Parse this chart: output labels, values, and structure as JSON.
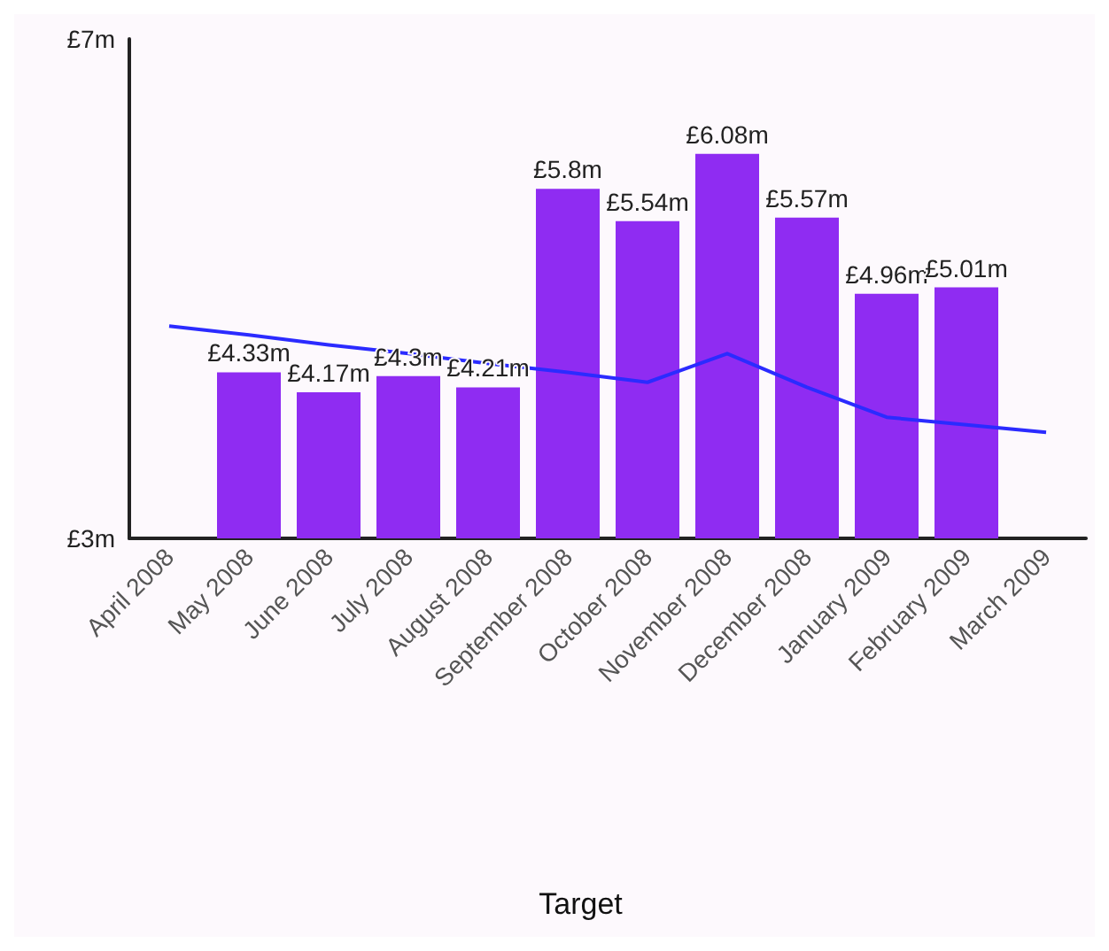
{
  "chart_data": {
    "type": "bar",
    "categories": [
      "April 2008",
      "May 2008",
      "June 2008",
      "July 2008",
      "August 2008",
      "September 2008",
      "October 2008",
      "November 2008",
      "December 2008",
      "January 2009",
      "February 2009",
      "March 2009"
    ],
    "series": [
      {
        "color": "#8f2cf2",
        "values": [
          null,
          4.33,
          4.17,
          4.3,
          4.21,
          5.8,
          5.54,
          6.08,
          5.57,
          4.96,
          5.01,
          null
        ],
        "value_labels": [
          null,
          "£4.33m",
          "£4.17m",
          "£4.3m",
          "£4.21m",
          "£5.8m",
          "£5.54m",
          "£6.08m",
          "£5.57m",
          "£4.96m",
          "£5.01m",
          null
        ]
      },
      {
        "type": "line",
        "name": "Target",
        "color": "#2b2bff",
        "values": [
          4.7,
          4.63,
          4.55,
          4.48,
          4.4,
          4.33,
          4.25,
          4.48,
          4.21,
          3.97,
          3.91,
          3.85
        ]
      }
    ],
    "ylim": [
      3,
      7
    ],
    "yticks": [
      {
        "value": 3,
        "label": "£3m"
      },
      {
        "value": 7,
        "label": "£7m"
      }
    ],
    "grid": false,
    "legend": "bottom",
    "marker": "none"
  }
}
